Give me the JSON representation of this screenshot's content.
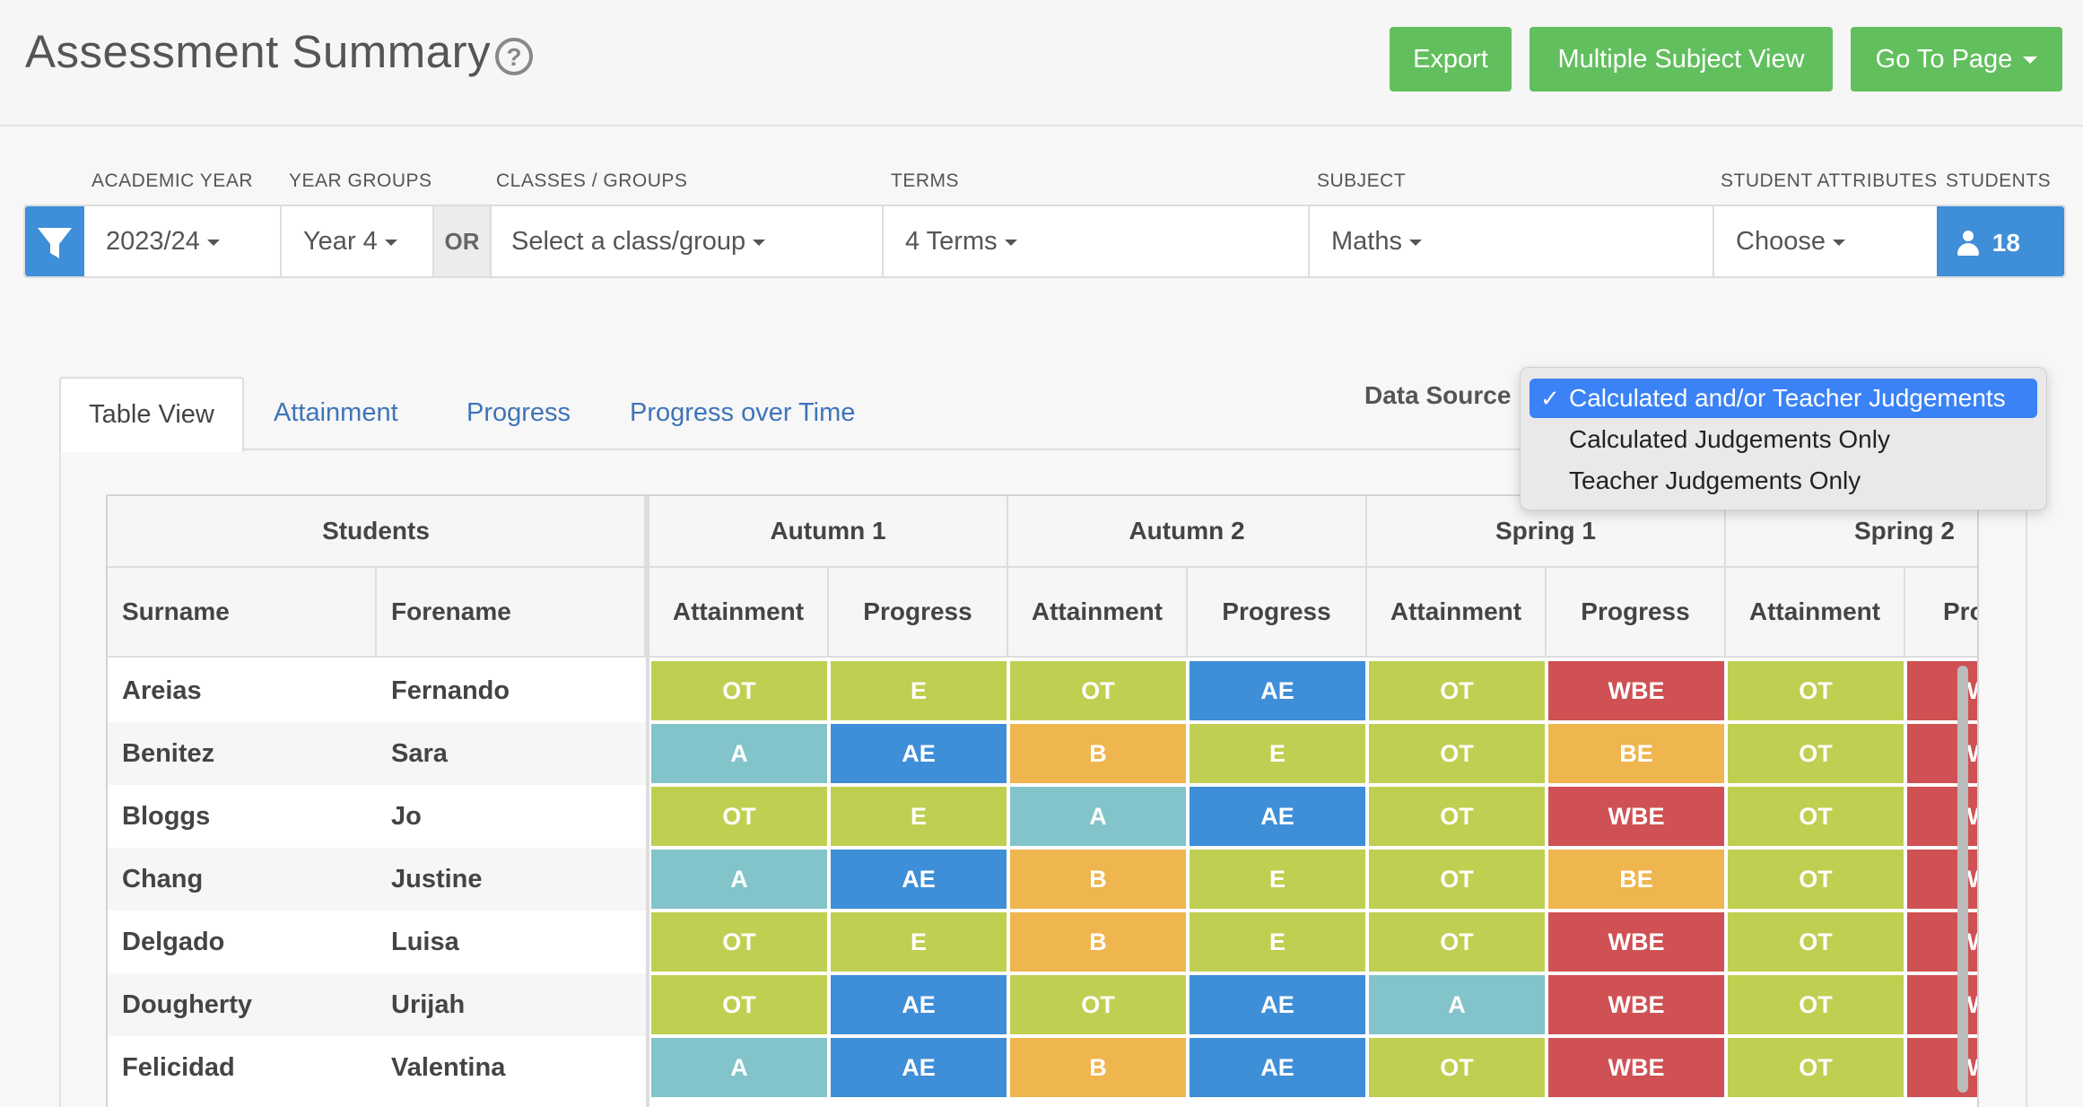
{
  "header": {
    "title": "Assessment Summary",
    "help_icon": "?",
    "buttons": {
      "export": "Export",
      "multiple_subject": "Multiple Subject View",
      "go_to_page": "Go To Page"
    }
  },
  "filters": {
    "labels": {
      "academic_year": "ACADEMIC YEAR",
      "year_groups": "YEAR GROUPS",
      "classes": "CLASSES / GROUPS",
      "terms": "TERMS",
      "subject": "SUBJECT",
      "attributes": "STUDENT ATTRIBUTES",
      "students": "STUDENTS"
    },
    "values": {
      "academic_year": "2023/24",
      "year_groups": "Year 4",
      "or": "OR",
      "classes": "Select a class/group",
      "terms": "4 Terms",
      "subject": "Maths",
      "attributes": "Choose",
      "students_count": "18"
    }
  },
  "tabs": [
    "Table View",
    "Attainment",
    "Progress",
    "Progress over Time"
  ],
  "data_source": {
    "label": "Data Source",
    "options": [
      "Calculated and/or Teacher Judgements",
      "Calculated Judgements Only",
      "Teacher Judgements Only"
    ],
    "selected_index": 0,
    "check": "✓"
  },
  "colors": {
    "OT": "#bfcf51",
    "E": "#bfcf51",
    "A": "#82c4c9",
    "AE": "#3e8ed8",
    "B": "#efb54f",
    "BE": "#efb54f",
    "WBE": "#cf5153"
  },
  "table": {
    "group_students": "Students",
    "terms": [
      "Autumn 1",
      "Autumn 2",
      "Spring 1",
      "Spring 2"
    ],
    "surname_header": "Surname",
    "forename_header": "Forename",
    "attainment_header": "Attainment",
    "progress_header": "Progress",
    "progress_header_cut": "Pro",
    "rows": [
      {
        "surname": "Areias",
        "forename": "Fernando",
        "values": [
          "OT",
          "E",
          "OT",
          "AE",
          "OT",
          "WBE",
          "OT",
          "WBE"
        ]
      },
      {
        "surname": "Benitez",
        "forename": "Sara",
        "values": [
          "A",
          "AE",
          "B",
          "E",
          "OT",
          "BE",
          "OT",
          "WBE"
        ]
      },
      {
        "surname": "Bloggs",
        "forename": "Jo",
        "values": [
          "OT",
          "E",
          "A",
          "AE",
          "OT",
          "WBE",
          "OT",
          "WBE"
        ]
      },
      {
        "surname": "Chang",
        "forename": "Justine",
        "values": [
          "A",
          "AE",
          "B",
          "E",
          "OT",
          "BE",
          "OT",
          "WBE"
        ]
      },
      {
        "surname": "Delgado",
        "forename": "Luisa",
        "values": [
          "OT",
          "E",
          "B",
          "E",
          "OT",
          "WBE",
          "OT",
          "WBE"
        ]
      },
      {
        "surname": "Dougherty",
        "forename": "Urijah",
        "values": [
          "OT",
          "AE",
          "OT",
          "AE",
          "A",
          "WBE",
          "OT",
          "WBE"
        ]
      },
      {
        "surname": "Felicidad",
        "forename": "Valentina",
        "values": [
          "A",
          "AE",
          "B",
          "AE",
          "OT",
          "WBE",
          "OT",
          "WBE"
        ]
      }
    ]
  }
}
